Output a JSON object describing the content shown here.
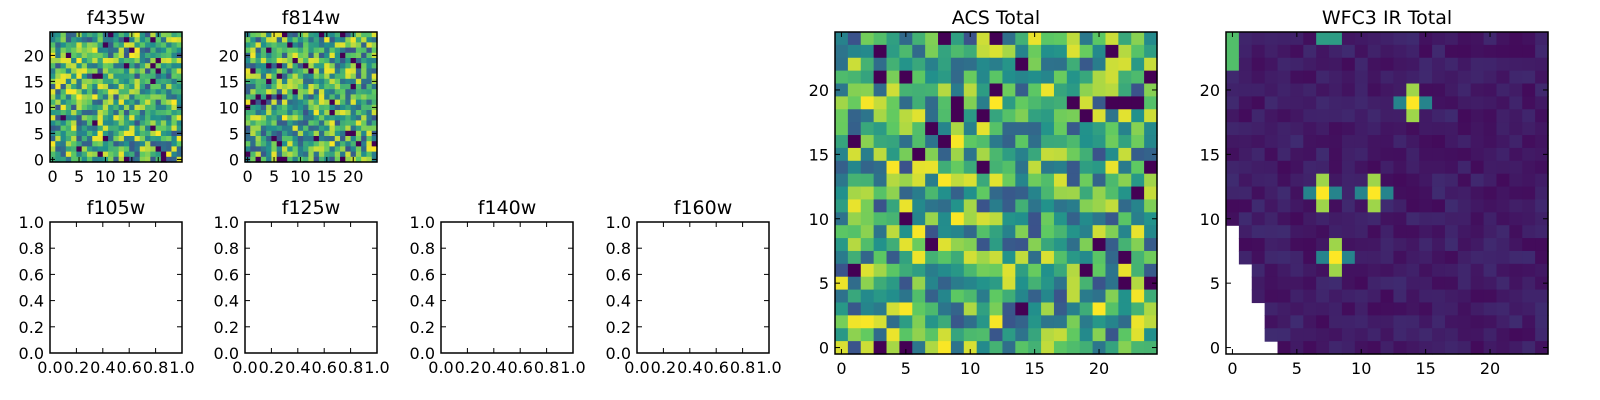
{
  "chart_data": [
    {
      "type": "heatmap",
      "title": "f435w",
      "rows": 25,
      "cols": 25,
      "xticks": [
        "0",
        "5",
        "10",
        "15",
        "20"
      ],
      "yticks": [
        "0",
        "5",
        "10",
        "15",
        "20"
      ],
      "colormap": "viridis",
      "pattern": "noise",
      "seed": 11
    },
    {
      "type": "heatmap",
      "title": "f814w",
      "rows": 25,
      "cols": 25,
      "xticks": [
        "0",
        "5",
        "10",
        "15",
        "20"
      ],
      "yticks": [
        "0",
        "5",
        "10",
        "15",
        "20"
      ],
      "colormap": "viridis",
      "pattern": "noise",
      "seed": 29
    },
    {
      "type": "empty",
      "title": "f105w",
      "xlim": [
        0,
        1
      ],
      "ylim": [
        0,
        1
      ],
      "xticks": [
        "0.0",
        "0.2",
        "0.4",
        "0.6",
        "0.8",
        "1.0"
      ],
      "yticks": [
        "0.0",
        "0.2",
        "0.4",
        "0.6",
        "0.8",
        "1.0"
      ]
    },
    {
      "type": "empty",
      "title": "f125w",
      "xlim": [
        0,
        1
      ],
      "ylim": [
        0,
        1
      ],
      "xticks": [
        "0.0",
        "0.2",
        "0.4",
        "0.6",
        "0.8",
        "1.0"
      ],
      "yticks": [
        "0.0",
        "0.2",
        "0.4",
        "0.6",
        "0.8",
        "1.0"
      ]
    },
    {
      "type": "empty",
      "title": "f140w",
      "xlim": [
        0,
        1
      ],
      "ylim": [
        0,
        1
      ],
      "xticks": [
        "0.0",
        "0.2",
        "0.4",
        "0.6",
        "0.8",
        "1.0"
      ],
      "yticks": [
        "0.0",
        "0.2",
        "0.4",
        "0.6",
        "0.8",
        "1.0"
      ]
    },
    {
      "type": "empty",
      "title": "f160w",
      "xlim": [
        0,
        1
      ],
      "ylim": [
        0,
        1
      ],
      "xticks": [
        "0.0",
        "0.2",
        "0.4",
        "0.6",
        "0.8",
        "1.0"
      ],
      "yticks": [
        "0.0",
        "0.2",
        "0.4",
        "0.6",
        "0.8",
        "1.0"
      ]
    },
    {
      "type": "heatmap",
      "title": "ACS Total",
      "rows": 25,
      "cols": 25,
      "xticks": [
        "0",
        "5",
        "10",
        "15",
        "20"
      ],
      "yticks": [
        "0",
        "5",
        "10",
        "15",
        "20"
      ],
      "colormap": "viridis",
      "pattern": "noise",
      "seed": 47
    },
    {
      "type": "heatmap",
      "title": "WFC3 IR Total",
      "rows": 25,
      "cols": 25,
      "xticks": [
        "0",
        "5",
        "10",
        "15",
        "20"
      ],
      "yticks": [
        "0",
        "5",
        "10",
        "15",
        "20"
      ],
      "colormap": "viridis",
      "pattern": "sources",
      "seed": 83,
      "sources": [
        [
          7,
          12
        ],
        [
          11,
          12
        ],
        [
          14,
          19
        ],
        [
          8,
          7
        ]
      ],
      "blank_lower_left": true
    }
  ],
  "colors": {
    "background": "#ffffff",
    "axis": "#000000",
    "colormap_low": "#440154",
    "colormap_mid": "#21918c",
    "colormap_high": "#fde725"
  }
}
